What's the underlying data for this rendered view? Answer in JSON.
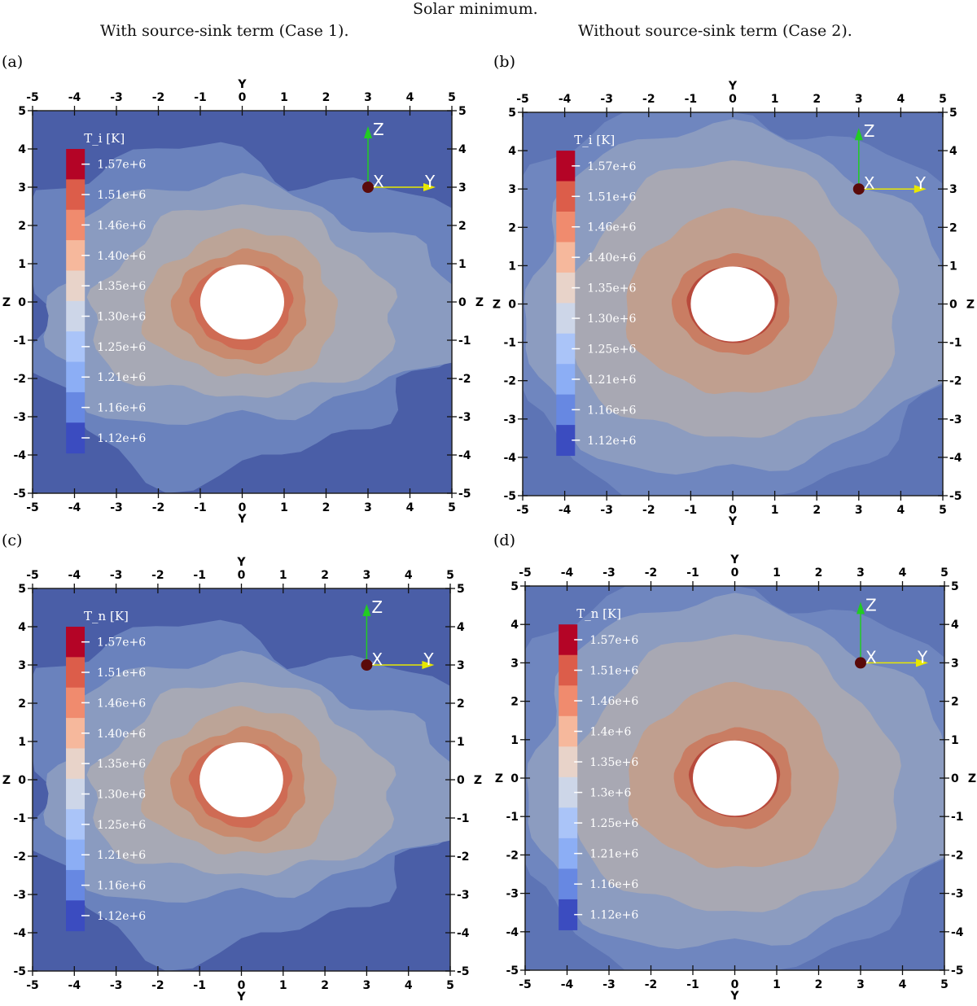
{
  "figure": {
    "title": "Solar minimum.",
    "left_column_title": "With source-sink term (Case 1).",
    "right_column_title": "Without source-sink term (Case 2)."
  },
  "chart_data": [
    {
      "type": "heatmap",
      "panel": "(a)",
      "xlabel": "Y",
      "ylabel": "Z",
      "xlim": [
        -5,
        5
      ],
      "ylim": [
        -5,
        5
      ],
      "ticks": [
        -5,
        -4,
        -3,
        -2,
        -1,
        0,
        1,
        2,
        3,
        4,
        5
      ],
      "colorbar_title": "T_i [K]",
      "colorbar_labels": [
        "1.57e+6",
        "1.51e+6",
        "1.46e+6",
        "1.40e+6",
        "1.35e+6",
        "1.30e+6",
        "1.25e+6",
        "1.21e+6",
        "1.16e+6",
        "1.12e+6"
      ],
      "axes_gizmo": [
        "X",
        "Y",
        "Z"
      ],
      "variant": "case1"
    },
    {
      "type": "heatmap",
      "panel": "(b)",
      "xlabel": "Y",
      "ylabel": "Z",
      "xlim": [
        -5,
        5
      ],
      "ylim": [
        -5,
        5
      ],
      "ticks": [
        -5,
        -4,
        -3,
        -2,
        -1,
        0,
        1,
        2,
        3,
        4,
        5
      ],
      "colorbar_title": "T_i [K]",
      "colorbar_labels": [
        "1.57e+6",
        "1.51e+6",
        "1.46e+6",
        "1.40e+6",
        "1.35e+6",
        "1.30e+6",
        "1.25e+6",
        "1.21e+6",
        "1.16e+6",
        "1.12e+6"
      ],
      "axes_gizmo": [
        "X",
        "Y",
        "Z"
      ],
      "variant": "case2"
    },
    {
      "type": "heatmap",
      "panel": "(c)",
      "xlabel": "Y",
      "ylabel": "Z",
      "xlim": [
        -5,
        5
      ],
      "ylim": [
        -5,
        5
      ],
      "ticks": [
        -5,
        -4,
        -3,
        -2,
        -1,
        0,
        1,
        2,
        3,
        4,
        5
      ],
      "colorbar_title": "T_n [K]",
      "colorbar_labels": [
        "1.57e+6",
        "1.51e+6",
        "1.46e+6",
        "1.40e+6",
        "1.35e+6",
        "1.30e+6",
        "1.25e+6",
        "1.21e+6",
        "1.16e+6",
        "1.12e+6"
      ],
      "axes_gizmo": [
        "X",
        "Y",
        "Z"
      ],
      "variant": "case1"
    },
    {
      "type": "heatmap",
      "panel": "(d)",
      "xlabel": "Y",
      "ylabel": "Z",
      "xlim": [
        -5,
        5
      ],
      "ylim": [
        -5,
        5
      ],
      "ticks": [
        -5,
        -4,
        -3,
        -2,
        -1,
        0,
        1,
        2,
        3,
        4,
        5
      ],
      "colorbar_title": "T_n [K]",
      "colorbar_labels": [
        "1.57e+6",
        "1.51e+6",
        "1.46e+6",
        "1.4e+6",
        "1.35e+6",
        "1.3e+6",
        "1.25e+6",
        "1.21e+6",
        "1.16e+6",
        "1.12e+6"
      ],
      "axes_gizmo": [
        "X",
        "Y",
        "Z"
      ],
      "variant": "case2"
    }
  ],
  "colors": {
    "colorbar": [
      "#b40426",
      "#dc5d4a",
      "#f08b6e",
      "#f6b89c",
      "#e8d3c9",
      "#cdd6e8",
      "#aac4f8",
      "#8caef5",
      "#6788e2",
      "#3b4cc0"
    ],
    "gizmo_z": "#22cc22",
    "gizmo_y": "#e8e800",
    "gizmo_x": "#5a0a0a"
  }
}
